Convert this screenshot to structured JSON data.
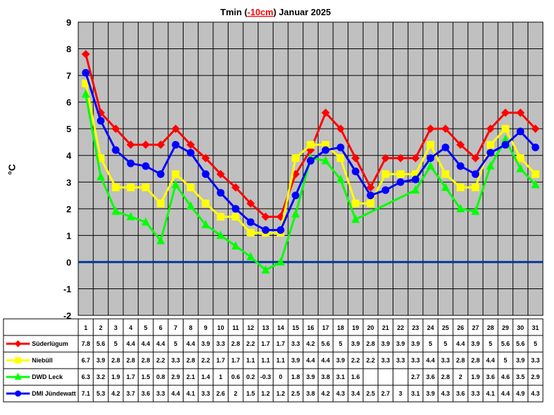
{
  "chart_data": {
    "type": "line",
    "title_prefix": "Tmin (",
    "title_highlight": "-10cm",
    "title_suffix": ") Januar 2025",
    "ylabel": "°C",
    "ylim": [
      -2,
      9
    ],
    "y_ticks": [
      "9",
      "8",
      "7",
      "6",
      "5",
      "4",
      "3",
      "2",
      "1",
      "0",
      "-1",
      "-2"
    ],
    "categories": [
      "1",
      "2",
      "3",
      "4",
      "5",
      "6",
      "7",
      "8",
      "9",
      "10",
      "11",
      "12",
      "13",
      "14",
      "15",
      "16",
      "17",
      "18",
      "19",
      "20",
      "21",
      "22",
      "23",
      "24",
      "25",
      "26",
      "27",
      "28",
      "29",
      "30",
      "31"
    ],
    "grid": true,
    "zero_line_color": "#003399",
    "plot_background": "#c0c0c0",
    "series": [
      {
        "name": "Süderlügum",
        "color": "#ff0000",
        "marker": "diamond",
        "values": [
          7.8,
          5.6,
          5,
          4.4,
          4.4,
          4.4,
          5,
          4.4,
          3.9,
          3.3,
          2.8,
          2.2,
          1.7,
          1.7,
          3.3,
          4.2,
          5.6,
          5,
          3.9,
          2.8,
          3.9,
          3.9,
          3.9,
          5,
          5,
          4.4,
          3.9,
          5,
          5.6,
          5.6,
          5
        ],
        "labels": [
          "7.8",
          "5.6",
          "5",
          "4.4",
          "4.4",
          "4.4",
          "5",
          "4.4",
          "3.9",
          "3.3",
          "2.8",
          "2.2",
          "1.7",
          "1.7",
          "3.3",
          "4.2",
          "5.6",
          "5",
          "3.9",
          "2.8",
          "3.9",
          "3.9",
          "3.9",
          "5",
          "5",
          "4.4",
          "3.9",
          "5",
          "5.6",
          "5.6",
          "5"
        ]
      },
      {
        "name": "Niebüll",
        "color": "#ffff00",
        "marker": "square",
        "values": [
          6.7,
          3.9,
          2.8,
          2.8,
          2.8,
          2.2,
          3.3,
          2.8,
          2.2,
          1.7,
          1.7,
          1.1,
          1.1,
          1.1,
          3.9,
          4.4,
          4.4,
          3.9,
          2.2,
          2.2,
          3.3,
          3.3,
          3.3,
          4.4,
          3.3,
          2.8,
          2.8,
          4.4,
          5,
          3.9,
          3.3
        ],
        "labels": [
          "6.7",
          "3.9",
          "2.8",
          "2.8",
          "2.8",
          "2.2",
          "3.3",
          "2.8",
          "2.2",
          "1.7",
          "1.7",
          "1.1",
          "1.1",
          "1.1",
          "3.9",
          "4.4",
          "4.4",
          "3.9",
          "2.2",
          "2.2",
          "3.3",
          "3.3",
          "3.3",
          "4.4",
          "3.3",
          "2.8",
          "2.8",
          "4.4",
          "5",
          "3.9",
          "3.3"
        ]
      },
      {
        "name": "DWD Leck",
        "color": "#00ff00",
        "marker": "triangle",
        "values": [
          6.3,
          3.2,
          1.9,
          1.7,
          1.5,
          0.8,
          2.9,
          2.1,
          1.4,
          1,
          0.6,
          0.2,
          -0.3,
          0,
          1.8,
          3.9,
          3.8,
          3.1,
          1.6,
          null,
          null,
          null,
          2.7,
          3.6,
          2.8,
          2,
          1.9,
          3.6,
          4.6,
          3.5,
          2.9
        ],
        "labels": [
          "6.3",
          "3.2",
          "1.9",
          "1.7",
          "1.5",
          "0.8",
          "2.9",
          "2.1",
          "1.4",
          "1",
          "0.6",
          "0.2",
          "-0.3",
          "0",
          "1.8",
          "3.9",
          "3.8",
          "3.1",
          "1.6",
          "",
          "",
          "",
          "2.7",
          "3.6",
          "2.8",
          "2",
          "1.9",
          "3.6",
          "4.6",
          "3.5",
          "2.9"
        ]
      },
      {
        "name": "DMI Jündewatt",
        "color": "#0000ff",
        "marker": "circle",
        "values": [
          7.1,
          5.3,
          4.2,
          3.7,
          3.6,
          3.3,
          4.4,
          4.1,
          3.3,
          2.6,
          2,
          1.5,
          1.2,
          1.2,
          2.5,
          3.8,
          4.2,
          4.3,
          3.4,
          2.5,
          2.7,
          3,
          3.1,
          3.9,
          4.3,
          3.6,
          3.3,
          4.1,
          4.4,
          4.9,
          4.3
        ],
        "labels": [
          "7.1",
          "5.3",
          "4.2",
          "3.7",
          "3.6",
          "3.3",
          "4.4",
          "4.1",
          "3.3",
          "2.6",
          "2",
          "1.5",
          "1.2",
          "1.2",
          "2.5",
          "3.8",
          "4.2",
          "4.3",
          "3.4",
          "2.5",
          "2.7",
          "3",
          "3.1",
          "3.9",
          "4.3",
          "3.6",
          "3.3",
          "4.1",
          "4.4",
          "4.9",
          "4.3"
        ]
      }
    ]
  }
}
